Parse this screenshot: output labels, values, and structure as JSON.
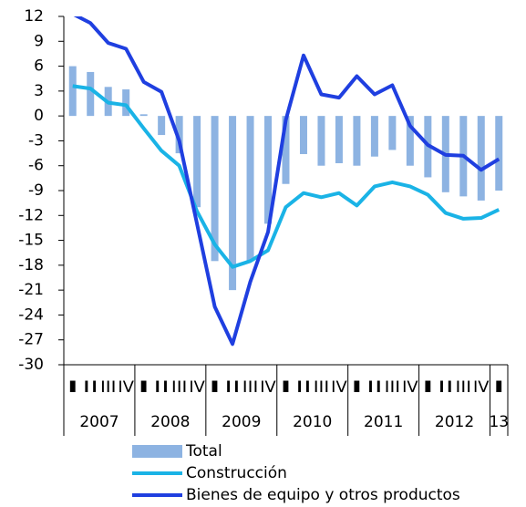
{
  "chart_data": {
    "type": "combo",
    "categories": [
      "I",
      "II",
      "III",
      "IV",
      "I",
      "II",
      "III",
      "IV",
      "I",
      "II",
      "III",
      "IV",
      "I",
      "II",
      "III",
      "IV",
      "I",
      "II",
      "III",
      "IV",
      "I",
      "II",
      "III",
      "IV",
      "I"
    ],
    "years": [
      "2007",
      "2008",
      "2009",
      "2010",
      "2011",
      "2012",
      "13"
    ],
    "series": [
      {
        "name": "Total",
        "type": "bar",
        "color": "#8db3e2",
        "values": [
          6,
          5.3,
          3.5,
          3.2,
          0.2,
          -2.3,
          -4.5,
          -11,
          -17.5,
          -21,
          -17.5,
          -13,
          -8.2,
          -4.6,
          -6,
          -5.7,
          -6,
          -4.9,
          -4.1,
          -6,
          -7.4,
          -9.2,
          -9.7,
          -10.2,
          -9
        ]
      },
      {
        "name": "Construcción",
        "type": "line",
        "color": "#1ab3e6",
        "values": [
          3.6,
          3.3,
          1.6,
          1.3,
          -1.5,
          -4.2,
          -6,
          -11.5,
          -15.5,
          -18.2,
          -17.5,
          -16.2,
          -11,
          -9.3,
          -9.8,
          -9.3,
          -10.8,
          -8.5,
          -8,
          -8.5,
          -9.5,
          -11.7,
          -12.4,
          -12.3,
          -11.3
        ]
      },
      {
        "name": "Bienes de equipo y otros productos",
        "type": "line",
        "color": "#1f3fe0",
        "values": [
          12.3,
          11.2,
          8.8,
          8.1,
          4.1,
          2.9,
          -3,
          -13,
          -23,
          -27.5,
          -20,
          -14,
          -0.5,
          7.3,
          2.6,
          2.2,
          4.8,
          2.6,
          3.7,
          -1.2,
          -3.5,
          -4.7,
          -4.8,
          -6.5,
          -5.2
        ]
      }
    ],
    "ylim": [
      -30,
      12
    ],
    "yticks": [
      12,
      9,
      6,
      3,
      0,
      -3,
      -6,
      -9,
      -12,
      -15,
      -18,
      -21,
      -24,
      -27,
      -30
    ]
  }
}
